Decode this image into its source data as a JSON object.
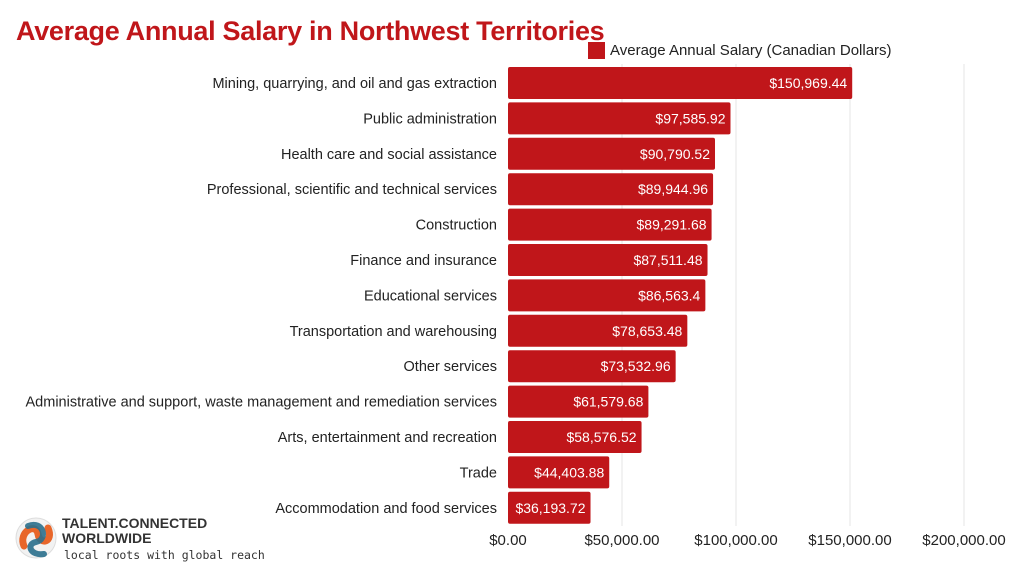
{
  "chart_data": {
    "type": "bar",
    "orientation": "horizontal",
    "title": "Average Annual Salary in Northwest Territories",
    "categories": [
      "Mining, quarrying, and oil and gas extraction",
      "Public administration",
      "Health care and social assistance",
      "Professional, scientific and technical services",
      "Construction",
      "Finance and insurance",
      "Educational services",
      "Transportation and warehousing",
      "Other services",
      "Administrative and support, waste management and remediation services",
      "Arts, entertainment and recreation",
      "Trade",
      "Accommodation and food services"
    ],
    "series": [
      {
        "name": "Average Annual Salary (Canadian Dollars)",
        "values": [
          150969.44,
          97585.92,
          90790.52,
          89944.96,
          89291.68,
          87511.48,
          86563.4,
          78653.48,
          73532.96,
          61579.68,
          58576.52,
          44403.88,
          36193.72
        ],
        "labels": [
          "$150,969.44",
          "$97,585.92",
          "$90,790.52",
          "$89,944.96",
          "$89,291.68",
          "$87,511.48",
          "$86,563.4",
          "$78,653.48",
          "$73,532.96",
          "$61,579.68",
          "$58,576.52",
          "$44,403.88",
          "$36,193.72"
        ]
      }
    ],
    "xlim": [
      0,
      200000
    ],
    "xticks": [
      0,
      50000,
      100000,
      150000,
      200000
    ],
    "xtick_labels": [
      "$0.00",
      "$50,000.00",
      "$100,000.00",
      "$150,000.00",
      "$200,000.00"
    ],
    "grid": true,
    "legend": "top-right",
    "color": "#c0161a"
  },
  "logo": {
    "line1": "TALENT.CONNECTED",
    "line2": "WORLDWIDE",
    "tagline": "local roots with global reach"
  }
}
